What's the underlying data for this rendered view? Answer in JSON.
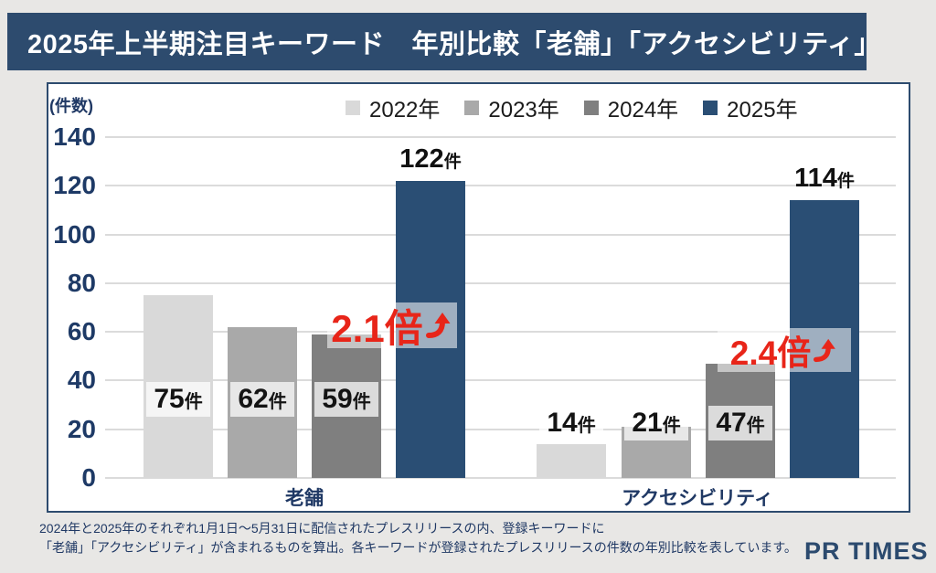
{
  "header": {
    "title": "2025年上半期注目キーワード　年別比較「老舗」「アクセシビリティ」"
  },
  "chart_data": {
    "type": "bar",
    "title": "2025年上半期注目キーワード　年別比較「老舗」「アクセシビリティ」",
    "ylabel": "(件数)",
    "unit": "件",
    "ylim": [
      0,
      140
    ],
    "yticks": [
      0,
      20,
      40,
      60,
      80,
      100,
      120,
      140
    ],
    "grid": true,
    "legend_position": "top",
    "categories": [
      "老舗",
      "アクセシビリティ"
    ],
    "series": [
      {
        "name": "2022年",
        "color": "#d9d9d9",
        "values": [
          75,
          14
        ]
      },
      {
        "name": "2023年",
        "color": "#a9a9a9",
        "values": [
          62,
          21
        ]
      },
      {
        "name": "2024年",
        "color": "#7f7f7f",
        "values": [
          59,
          47
        ]
      },
      {
        "name": "2025年",
        "color": "#2a4e74",
        "values": [
          122,
          114
        ]
      }
    ],
    "annotations": [
      {
        "text": "2.1倍",
        "arrow": "curve-up-right",
        "category": "老舗",
        "color": "#e82519"
      },
      {
        "text": "2.4倍",
        "arrow": "curve-up-right",
        "category": "アクセシビリティ",
        "color": "#e82519"
      }
    ]
  },
  "footer": {
    "line1": "2024年と2025年のそれぞれ1月1日～5月31日に配信されたプレスリリースの内、登録キーワードに",
    "line2": "「老舗」「アクセシビリティ」が含まれるものを算出。各キーワードが登録されたプレスリリースの件数の年別比較を表しています。",
    "logo": "PR TIMES"
  }
}
